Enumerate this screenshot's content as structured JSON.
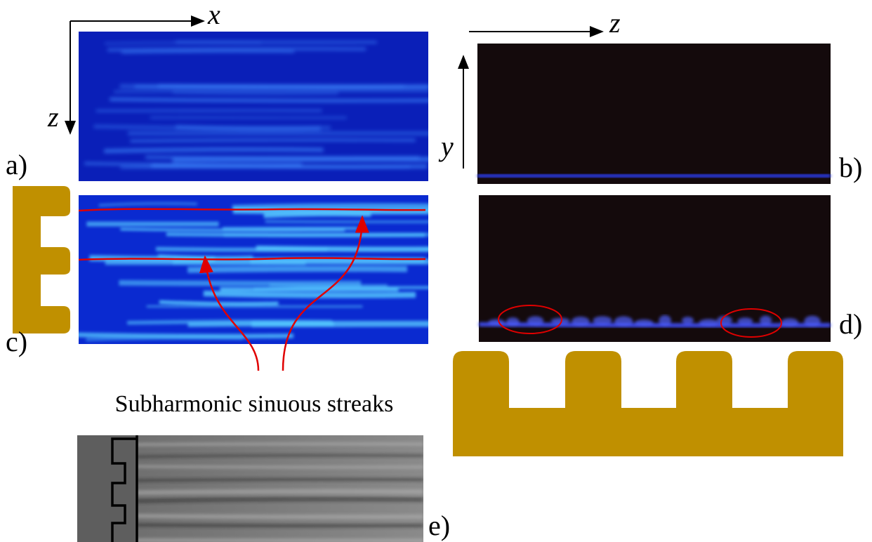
{
  "panels": {
    "a": {
      "label": "a)",
      "axis_x": "x",
      "axis_z": "z"
    },
    "b": {
      "label": "b)",
      "axis_z": "z",
      "axis_y": "y"
    },
    "c": {
      "label": "c)"
    },
    "d": {
      "label": "d)"
    },
    "e": {
      "label": "e)"
    }
  },
  "annotation": "Subharmonic sinuous streaks"
}
